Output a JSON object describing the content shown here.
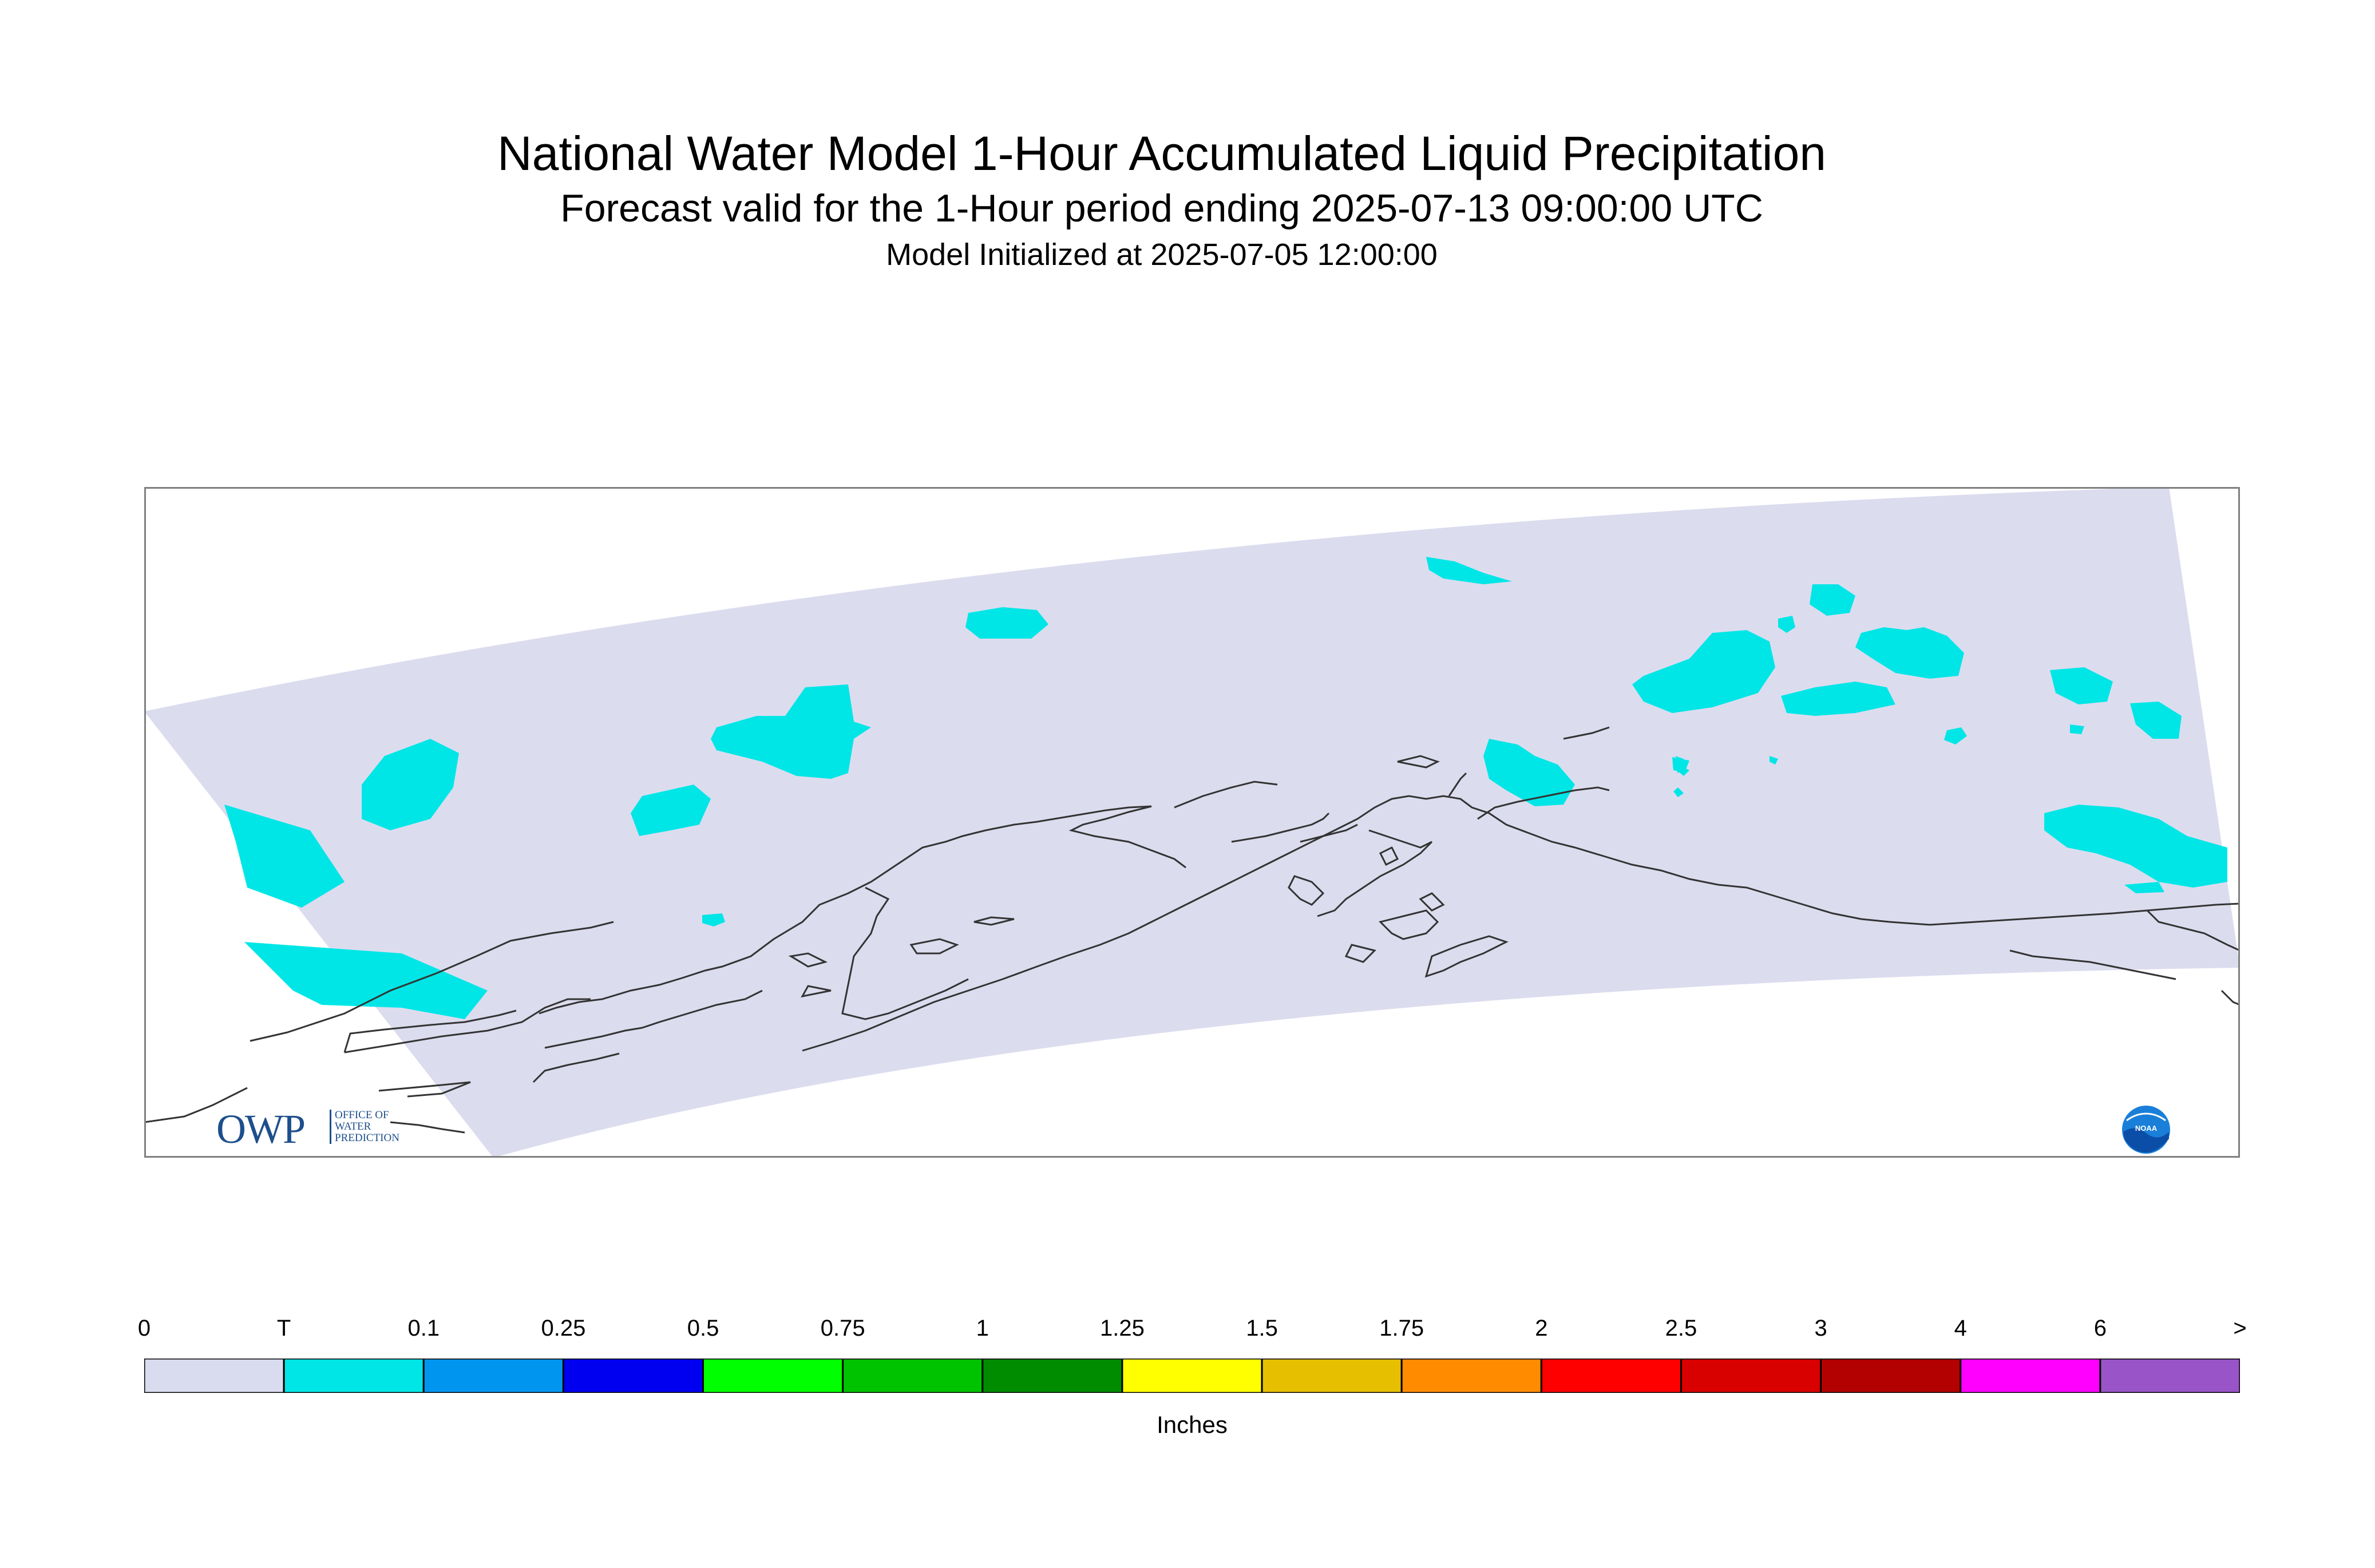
{
  "title": "National Water Model 1-Hour Accumulated Liquid Precipitation",
  "subtitle": "Forecast valid for the 1-Hour period ending 2025-07-13 09:00:00 UTC",
  "initialized": "Model Initialized at 2025-07-05 12:00:00",
  "colorbar": {
    "title": "Inches",
    "tick_labels": [
      "0",
      "T",
      "0.1",
      "0.25",
      "0.5",
      "0.75",
      "1",
      "1.25",
      "1.5",
      "1.75",
      "2",
      "2.5",
      "3",
      "4",
      "6",
      ">"
    ],
    "colors": [
      "#d9dbee",
      "#00e6e6",
      "#0096f0",
      "#0000f0",
      "#00ff00",
      "#00c300",
      "#008c00",
      "#ffff00",
      "#e6bf00",
      "#ff8c00",
      "#ff0000",
      "#d90000",
      "#b30000",
      "#ff00ff",
      "#9955c8"
    ]
  },
  "map": {
    "no_precip_color": "#dcdcef",
    "trace_color": "#00e6e6",
    "coastline_color": "#333333"
  },
  "logos": {
    "owp_text": "OWP",
    "owp_small": [
      "OFFICE OF",
      "WATER",
      "PREDICTION"
    ],
    "noaa_text": "NOAA"
  }
}
